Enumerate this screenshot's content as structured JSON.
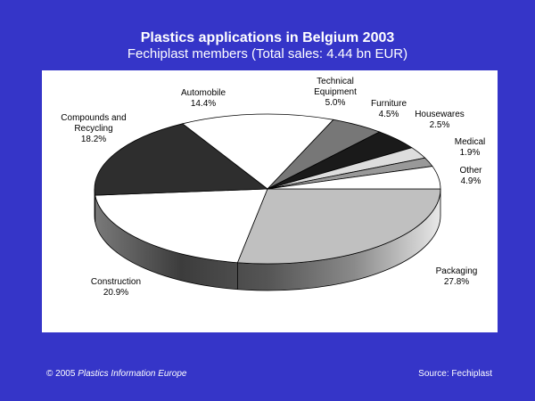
{
  "header": {
    "title": "Plastics applications in Belgium 2003",
    "subtitle": "Fechiplast members (Total sales: 4.44 bn EUR)"
  },
  "footer": {
    "copyright": "© 2005",
    "publisher": "Plastics Information Europe",
    "source": "Source: Fechiplast"
  },
  "colors": {
    "background": "#3535c8",
    "plot_area": "#ffffff"
  },
  "chart_data": {
    "type": "pie",
    "title": "Plastics applications in Belgium 2003",
    "subtitle": "Fechiplast members (Total sales: 4.44 bn EUR)",
    "three_d": true,
    "legend": "none",
    "slices": [
      {
        "label": [
          "Packaging"
        ],
        "value_text": "27.8%",
        "value": 27.8,
        "color": "#c0c0c0"
      },
      {
        "label": [
          "Construction"
        ],
        "value_text": "20.9%",
        "value": 20.9,
        "color": "#ffffff"
      },
      {
        "label": [
          "Compounds and",
          "Recycling"
        ],
        "value_text": "18.2%",
        "value": 18.2,
        "color": "#2e2e2e"
      },
      {
        "label": [
          "Automobile"
        ],
        "value_text": "14.4%",
        "value": 14.4,
        "color": "#ffffff"
      },
      {
        "label": [
          "Technical",
          "Equipment"
        ],
        "value_text": "5.0%",
        "value": 5.0,
        "color": "#777777"
      },
      {
        "label": [
          "Furniture"
        ],
        "value_text": "4.5%",
        "value": 4.5,
        "color": "#1a1a1a"
      },
      {
        "label": [
          "Housewares"
        ],
        "value_text": "2.5%",
        "value": 2.5,
        "color": "#dddddd"
      },
      {
        "label": [
          "Medical"
        ],
        "value_text": "1.9%",
        "value": 1.9,
        "color": "#999999"
      },
      {
        "label": [
          "Other"
        ],
        "value_text": "4.9%",
        "value": 4.9,
        "color": "#ffffff"
      }
    ]
  }
}
